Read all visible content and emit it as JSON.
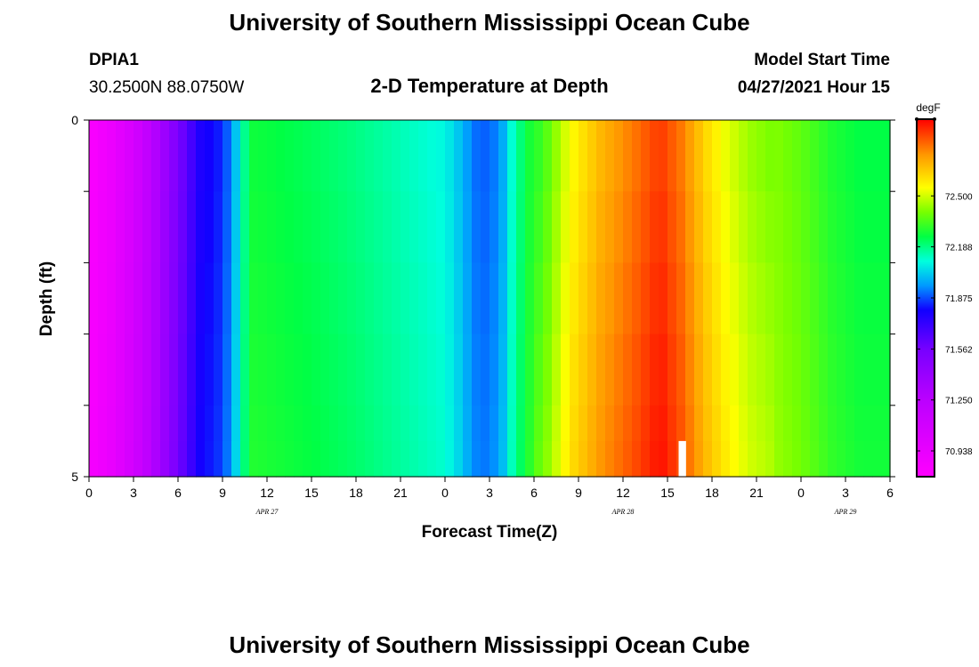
{
  "page": {
    "title": "University of Southern Mississippi Ocean Cube",
    "footer_title": "University of Southern Mississippi Ocean Cube",
    "station_id": "DPIA1",
    "coords": "30.2500N  88.0750W",
    "subtitle": "2-D Temperature at Depth",
    "model_start_label": "Model Start Time",
    "model_start_value": "04/27/2021 Hour 15"
  },
  "chart_data": {
    "type": "heatmap",
    "title": "2-D Temperature at Depth",
    "xlabel": "Forecast Time(Z)",
    "ylabel": "Depth (ft)",
    "units": "degF",
    "ylim": [
      0,
      5
    ],
    "y_tick_labels": [
      "0",
      "5"
    ],
    "y_minor_ticks": [
      1,
      2,
      3,
      4
    ],
    "x_tick_labels": [
      "0",
      "3",
      "6",
      "9",
      "12",
      "15",
      "18",
      "21",
      "0",
      "3",
      "6",
      "9",
      "12",
      "15",
      "18",
      "21",
      "0",
      "3",
      "6"
    ],
    "x_range_hours": [
      0,
      54
    ],
    "date_labels": [
      {
        "label": "APR 27",
        "hour": 12
      },
      {
        "label": "APR 28",
        "hour": 36
      },
      {
        "label": "APR 29",
        "hour": 51
      }
    ],
    "colorbar": {
      "unit": "degF",
      "min": 70.78,
      "max": 72.97,
      "labels": [
        "72.500",
        "72.188",
        "71.875",
        "71.562",
        "71.250",
        "70.938"
      ],
      "label_values": [
        72.5,
        72.188,
        71.875,
        71.562,
        71.25,
        70.938
      ],
      "stops": [
        {
          "v": 70.78,
          "c": "#ff00ff"
        },
        {
          "v": 71.25,
          "c": "#bb00ff"
        },
        {
          "v": 71.56,
          "c": "#7700ff"
        },
        {
          "v": 71.8,
          "c": "#1100ff"
        },
        {
          "v": 71.95,
          "c": "#0099ff"
        },
        {
          "v": 72.1,
          "c": "#00ffdd"
        },
        {
          "v": 72.25,
          "c": "#00ff44"
        },
        {
          "v": 72.4,
          "c": "#77ff00"
        },
        {
          "v": 72.55,
          "c": "#ffff00"
        },
        {
          "v": 72.75,
          "c": "#ff9900"
        },
        {
          "v": 72.97,
          "c": "#ff0000"
        }
      ]
    },
    "depth_rows": [
      0,
      1,
      2,
      3,
      4,
      4.5
    ],
    "time_profile": [
      {
        "h": 0,
        "v": 70.82
      },
      {
        "h": 1.5,
        "v": 70.92
      },
      {
        "h": 3,
        "v": 71.08
      },
      {
        "h": 4.5,
        "v": 71.3
      },
      {
        "h": 6,
        "v": 71.55
      },
      {
        "h": 7.5,
        "v": 71.78
      },
      {
        "h": 9,
        "v": 71.85
      },
      {
        "h": 9.6,
        "v": 71.95
      },
      {
        "h": 10.2,
        "v": 72.1
      },
      {
        "h": 10.8,
        "v": 72.28
      },
      {
        "h": 12,
        "v": 72.27
      },
      {
        "h": 15,
        "v": 72.24
      },
      {
        "h": 18,
        "v": 72.2
      },
      {
        "h": 21,
        "v": 72.15
      },
      {
        "h": 24,
        "v": 72.1
      },
      {
        "h": 25,
        "v": 72.02
      },
      {
        "h": 26,
        "v": 71.92
      },
      {
        "h": 27,
        "v": 71.9
      },
      {
        "h": 28,
        "v": 72.0
      },
      {
        "h": 28.5,
        "v": 72.12
      },
      {
        "h": 29.5,
        "v": 72.27
      },
      {
        "h": 31,
        "v": 72.4
      },
      {
        "h": 32.5,
        "v": 72.58
      },
      {
        "h": 34.5,
        "v": 72.72
      },
      {
        "h": 37,
        "v": 72.84
      },
      {
        "h": 38.5,
        "v": 72.92
      },
      {
        "h": 40,
        "v": 72.82
      },
      {
        "h": 41.5,
        "v": 72.66
      },
      {
        "h": 43,
        "v": 72.55
      },
      {
        "h": 44.5,
        "v": 72.47
      },
      {
        "h": 46,
        "v": 72.43
      },
      {
        "h": 48,
        "v": 72.38
      },
      {
        "h": 50,
        "v": 72.3
      },
      {
        "h": 52,
        "v": 72.26
      },
      {
        "h": 54,
        "v": 72.26
      }
    ],
    "missing_cell": {
      "hour": 40,
      "depth_from": 4.5,
      "depth_to": 5
    }
  }
}
